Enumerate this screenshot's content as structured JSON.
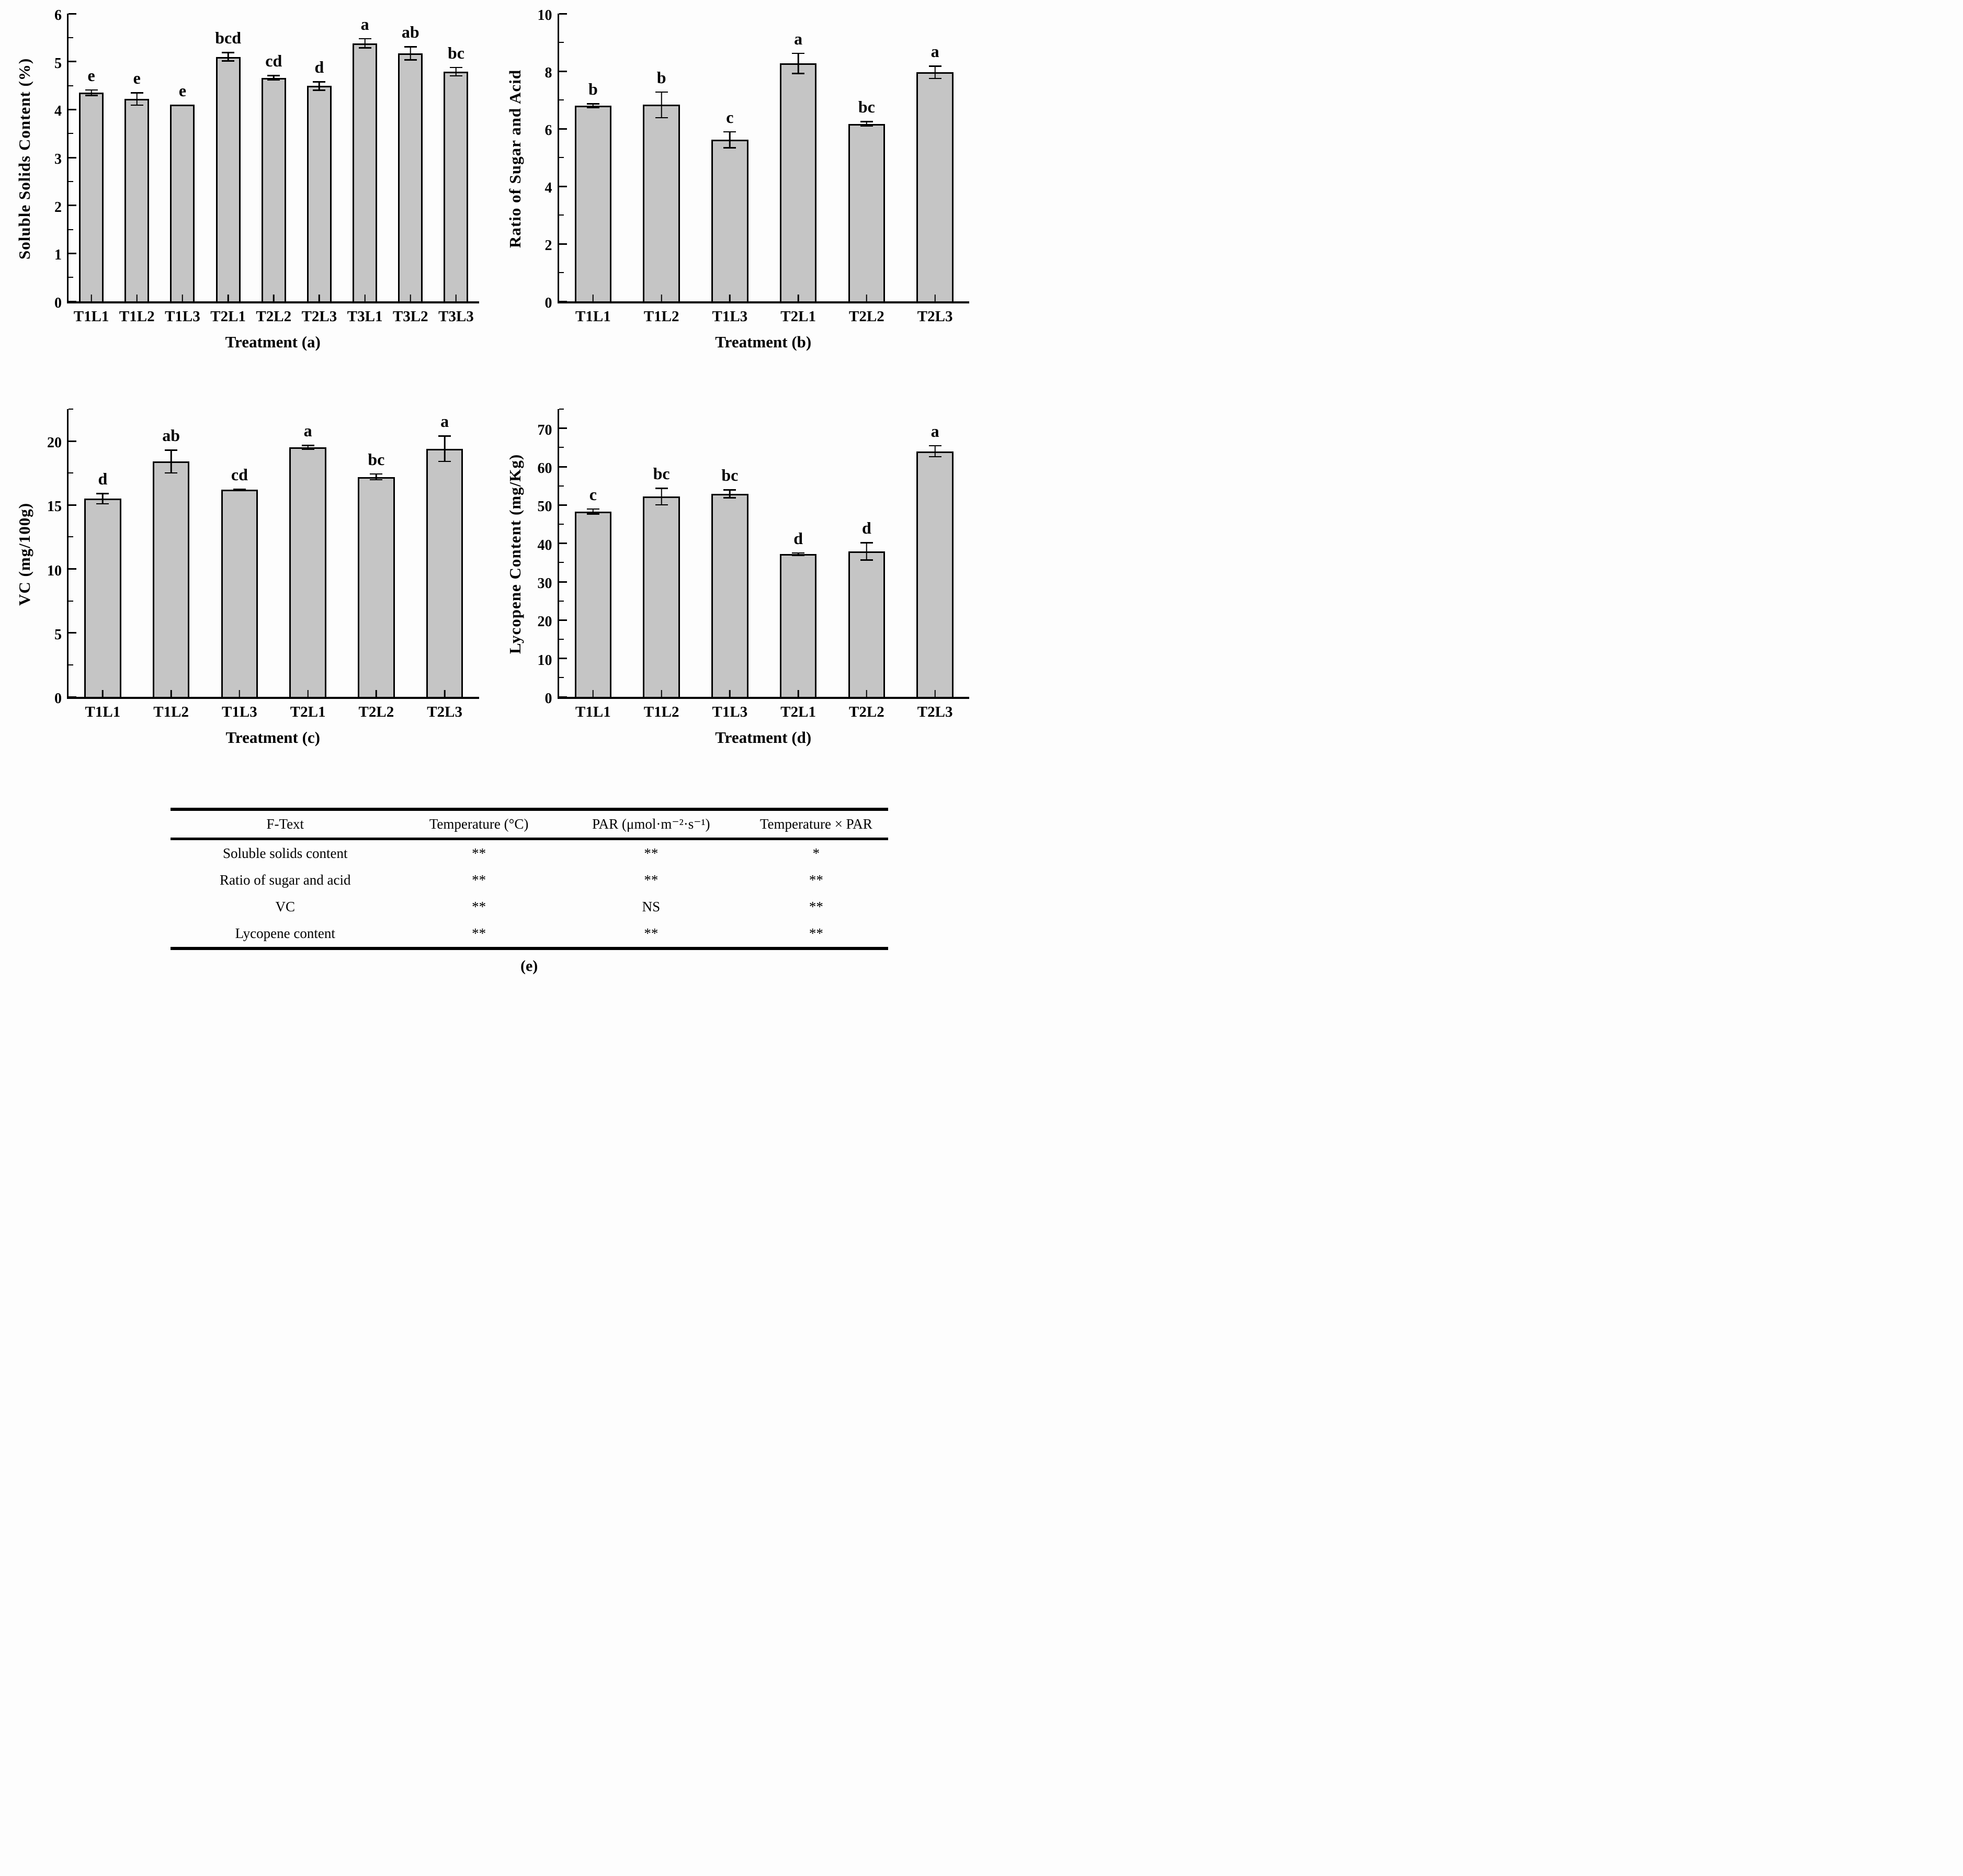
{
  "colors": {
    "bar_fill": "#c5c5c5",
    "bar_border": "#000000",
    "background": "#fdfdfd",
    "text": "#000000"
  },
  "chart_data": [
    {
      "type": "bar",
      "id": "a",
      "ylabel": "Soluble Solids Content (%)",
      "xlabel": "Treatment (a)",
      "ylim": [
        0,
        6
      ],
      "ytick_step": 1,
      "yminor_step": 0.5,
      "grid": false,
      "categories": [
        "T1L1",
        "T1L2",
        "T1L3",
        "T2L1",
        "T2L2",
        "T2L3",
        "T3L1",
        "T3L2",
        "T3L3"
      ],
      "values": [
        4.35,
        4.22,
        4.1,
        5.1,
        4.66,
        4.49,
        5.38,
        5.17,
        4.79
      ],
      "errors": [
        0.07,
        0.14,
        0,
        0.1,
        0.06,
        0.1,
        0.11,
        0.15,
        0.1
      ],
      "sig_letters": [
        "e",
        "e",
        "e",
        "bcd",
        "cd",
        "d",
        "a",
        "ab",
        "bc"
      ]
    },
    {
      "type": "bar",
      "id": "b",
      "ylabel": "Ratio of Sugar and Acid",
      "xlabel": "Treatment (b)",
      "ylim": [
        0,
        10
      ],
      "ytick_step": 2,
      "yminor_step": 1,
      "grid": false,
      "categories": [
        "T1L1",
        "T1L2",
        "T1L3",
        "T2L1",
        "T2L2",
        "T2L3"
      ],
      "values": [
        6.8,
        6.83,
        5.61,
        8.27,
        6.17,
        7.96
      ],
      "errors": [
        0.09,
        0.47,
        0.3,
        0.37,
        0.1,
        0.24
      ],
      "sig_letters": [
        "b",
        "b",
        "c",
        "a",
        "bc",
        "a"
      ]
    },
    {
      "type": "bar",
      "id": "c",
      "ylabel": "VC (mg/100g)",
      "xlabel": "Treatment (c)",
      "ylim": [
        0,
        22.5
      ],
      "ytick_step": 5,
      "yminor_step": 2.5,
      "grid": false,
      "categories": [
        "T1L1",
        "T1L2",
        "T1L3",
        "T2L1",
        "T2L2",
        "T2L3"
      ],
      "values": [
        15.5,
        18.4,
        16.2,
        19.5,
        17.2,
        19.4
      ],
      "errors": [
        0.45,
        0.95,
        0.1,
        0.2,
        0.28,
        1.05
      ],
      "sig_letters": [
        "d",
        "ab",
        "cd",
        "a",
        "bc",
        "a"
      ]
    },
    {
      "type": "bar",
      "id": "d",
      "ylabel": "Lycopene Content (mg/Kg)",
      "xlabel": "Treatment (d)",
      "ylim": [
        0,
        75
      ],
      "ytick_step": 10,
      "yminor_step": 5,
      "grid": false,
      "categories": [
        "T1L1",
        "T1L2",
        "T1L3",
        "T2L1",
        "T2L2",
        "T2L3"
      ],
      "values": [
        48.3,
        52.2,
        52.9,
        37.2,
        37.9,
        64.0
      ],
      "errors": [
        0.8,
        2.3,
        1.2,
        0.5,
        2.4,
        1.6
      ],
      "sig_letters": [
        "c",
        "bc",
        "bc",
        "d",
        "d",
        "a"
      ]
    },
    {
      "type": "table",
      "id": "e",
      "caption": "(e)",
      "headers": [
        "F-Text",
        "Temperature (°C)",
        "PAR (μmol·m⁻²·s⁻¹)",
        "Temperature × PAR"
      ],
      "rows": [
        [
          "Soluble solids content",
          "**",
          "**",
          "*"
        ],
        [
          "Ratio of sugar and acid",
          "**",
          "**",
          "**"
        ],
        [
          "VC",
          "**",
          "NS",
          "**"
        ],
        [
          "Lycopene content",
          "**",
          "**",
          "**"
        ]
      ]
    }
  ]
}
